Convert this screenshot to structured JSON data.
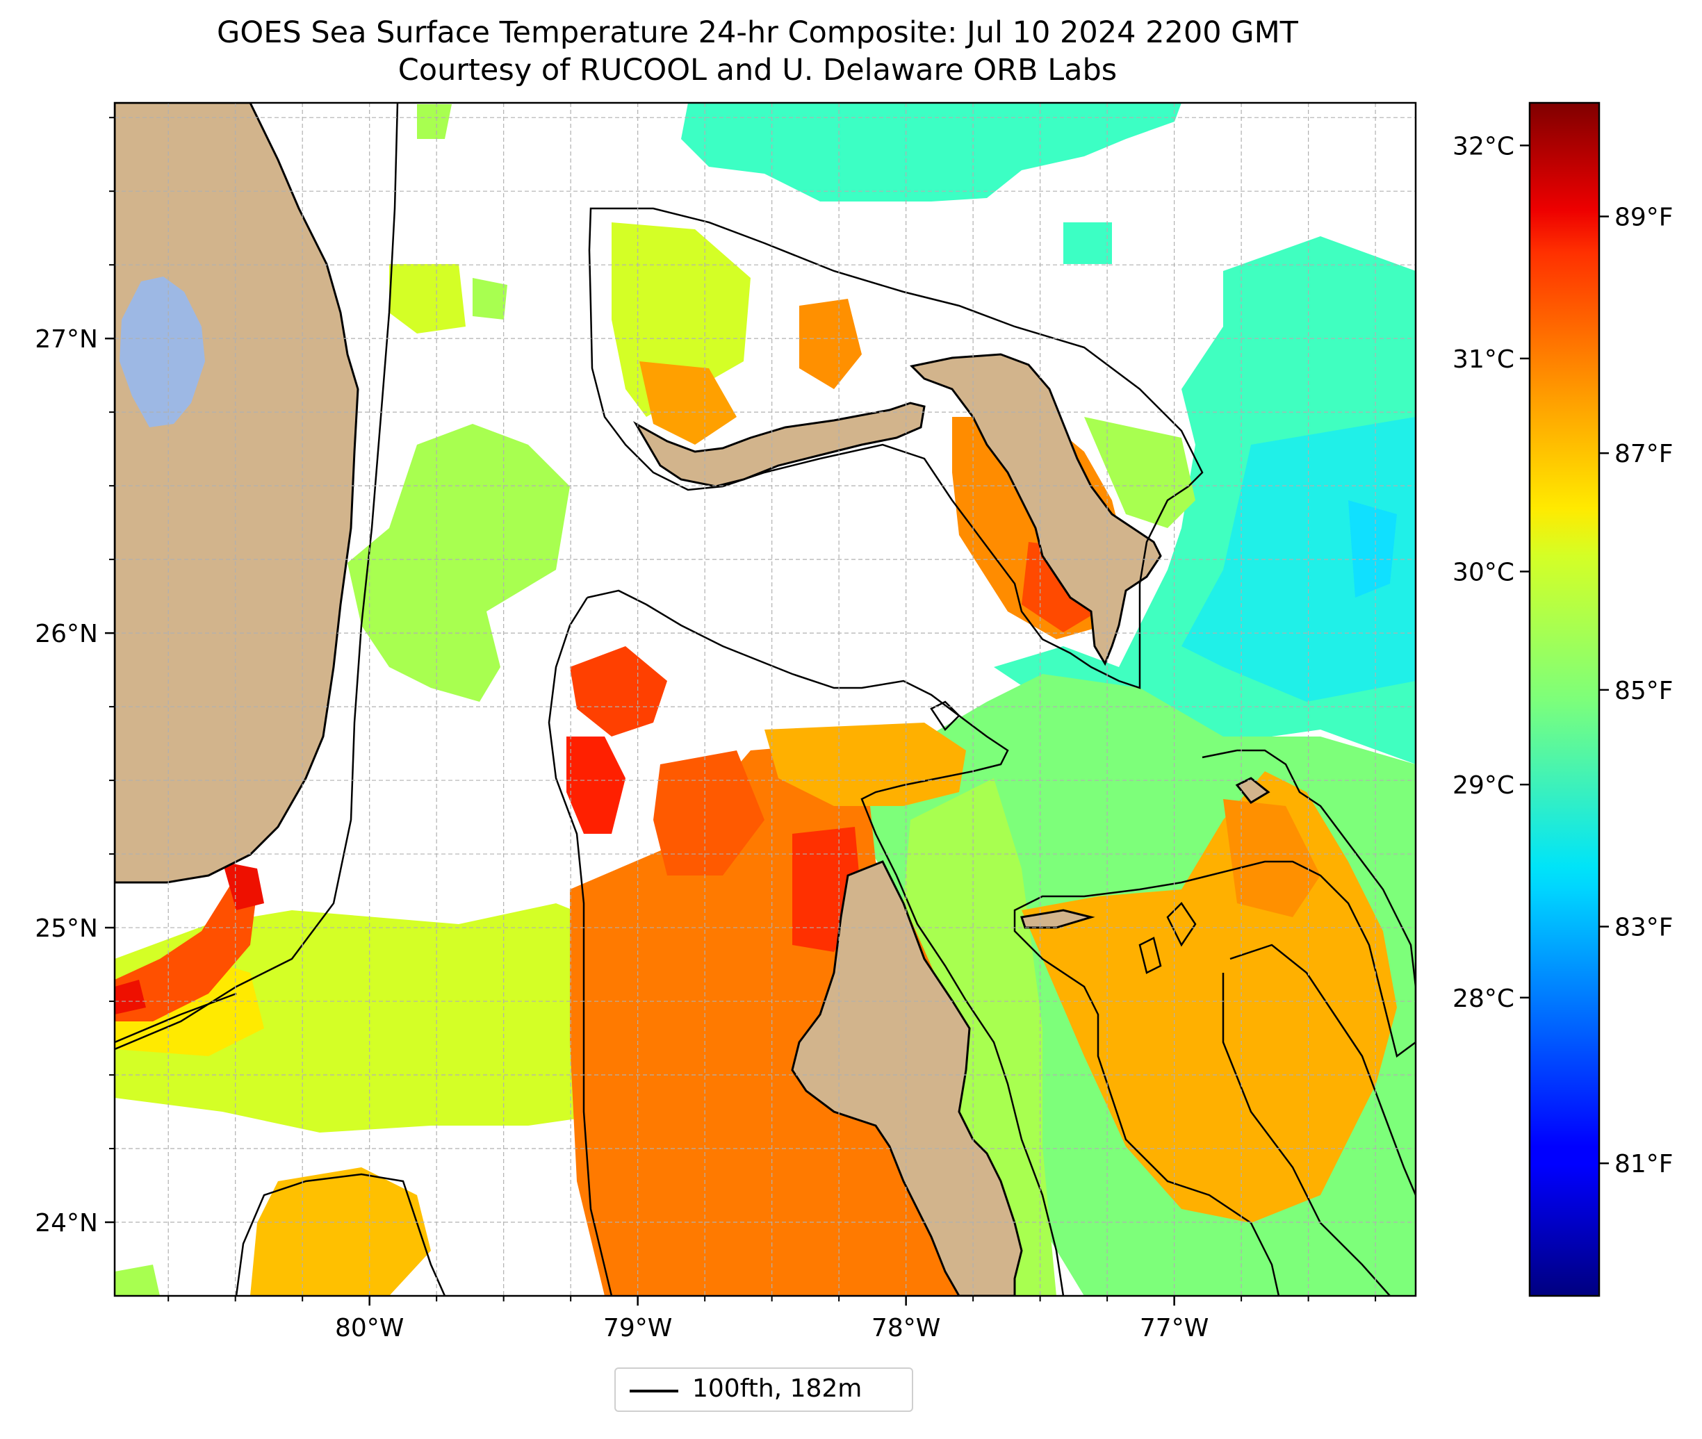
{
  "title": {
    "line1": "GOES Sea Surface Temperature 24-hr Composite: Jul 10 2024 2200 GMT",
    "line2": "Courtesy of RUCOOL and U. Delaware ORB Labs"
  },
  "map": {
    "lon_range": [
      -80.95,
      -76.1
    ],
    "lat_range": [
      23.75,
      27.8
    ],
    "grid": true,
    "lat_labels": [
      {
        "value": 27,
        "label": "27°N"
      },
      {
        "value": 26,
        "label": "26°N"
      },
      {
        "value": 25,
        "label": "25°N"
      },
      {
        "value": 24,
        "label": "24°N"
      }
    ],
    "lon_labels": [
      {
        "value": -80,
        "label": "80°W"
      },
      {
        "value": -79,
        "label": "79°W"
      },
      {
        "value": -78,
        "label": "78°W"
      },
      {
        "value": -77,
        "label": "77°W"
      }
    ],
    "colors": {
      "land": "#d2b48c",
      "lake": "#9db8e4",
      "contour": "#000000"
    }
  },
  "colorbar": {
    "colormap": "jet",
    "celsius_range": [
      26.6,
      32.2
    ],
    "celsius_ticks": [
      {
        "value": 28,
        "label": "28°C"
      },
      {
        "value": 29,
        "label": "29°C"
      },
      {
        "value": 30,
        "label": "30°C"
      },
      {
        "value": 31,
        "label": "31°C"
      },
      {
        "value": 32,
        "label": "32°C"
      }
    ],
    "fahrenheit_ticks": [
      {
        "value": 81,
        "label": "81°F"
      },
      {
        "value": 83,
        "label": "83°F"
      },
      {
        "value": 85,
        "label": "85°F"
      },
      {
        "value": 87,
        "label": "87°F"
      },
      {
        "value": 89,
        "label": "89°F"
      }
    ]
  },
  "legend": {
    "label": "100fth, 182m",
    "line_color": "#000000"
  }
}
